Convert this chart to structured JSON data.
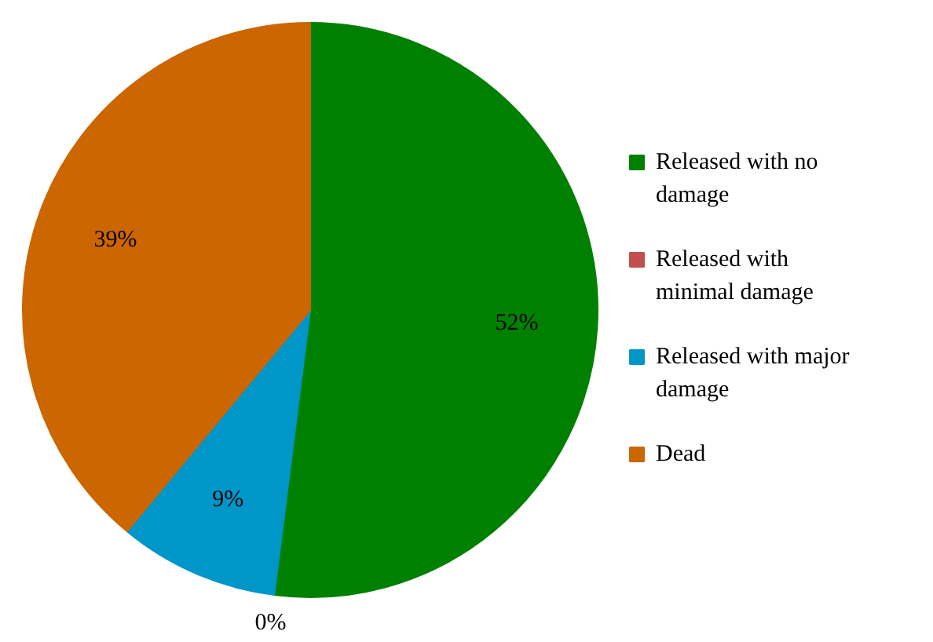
{
  "chart_data": {
    "type": "pie",
    "categories": [
      "Released with no damage",
      "Released with minimal damage",
      "Released with major damage",
      "Dead"
    ],
    "values": [
      52,
      0,
      9,
      39
    ],
    "colors": [
      "#008000",
      "#c0504d",
      "#0096c8",
      "#cc6600"
    ],
    "value_labels": [
      "52%",
      "0%",
      "9%",
      "39%"
    ],
    "legend": "right"
  }
}
